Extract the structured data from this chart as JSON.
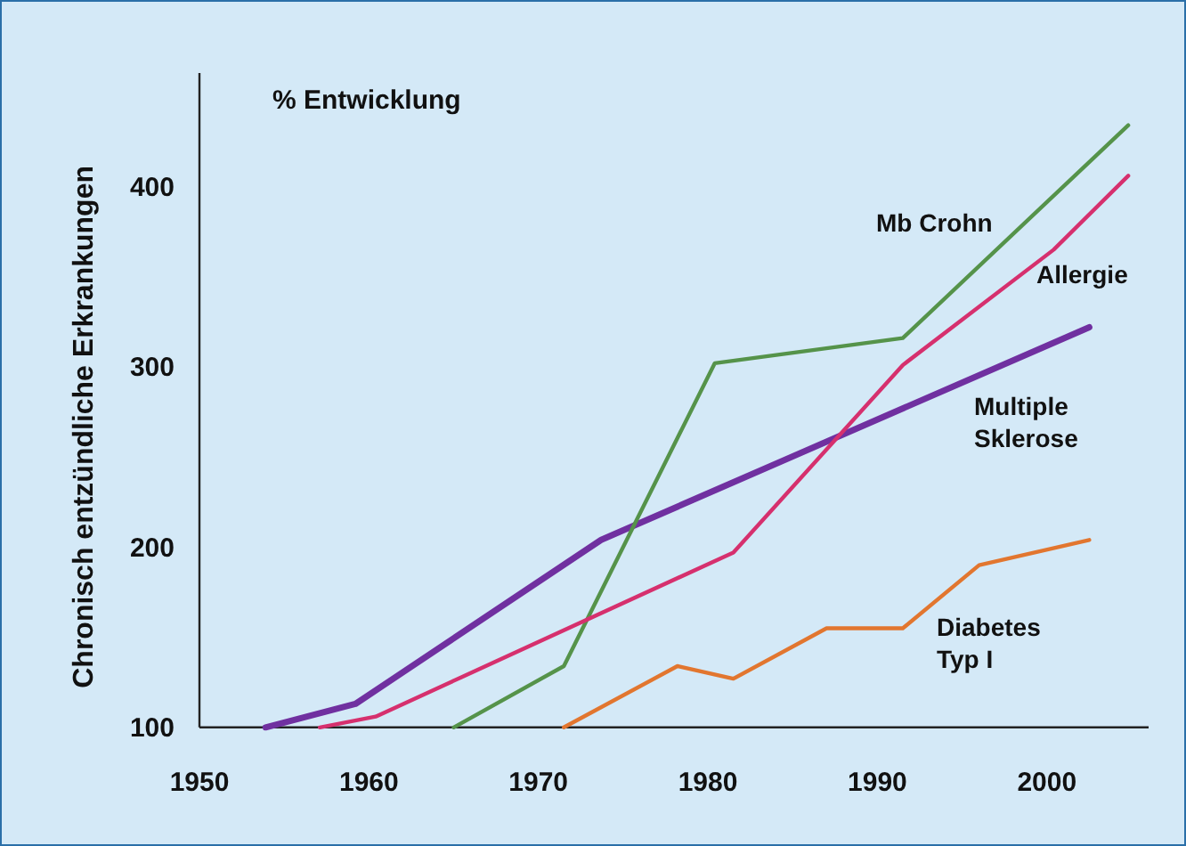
{
  "chart_data": {
    "type": "line",
    "title": "% Entwicklung",
    "ylabel": "Chronisch entzündliche Erkrankungen",
    "xlim": [
      1950,
      2006
    ],
    "xticks": [
      1950,
      1960,
      1970,
      1980,
      1990,
      2000
    ],
    "ylim": [
      100,
      463
    ],
    "yticks": [
      100,
      200,
      300,
      400
    ],
    "grid": false,
    "legend": false,
    "marker": "none",
    "line_style": "solid",
    "series": [
      {
        "name": "Multiple Sklerose",
        "color": "#7030a0",
        "x": [
          1953.9,
          1959.2,
          1973.7,
          2002.5
        ],
        "values": [
          100,
          113,
          204,
          322
        ]
      },
      {
        "name": "Mb Crohn",
        "color": "#55934a",
        "x": [
          1965,
          1971.5,
          1980.4,
          1991.5,
          2004.8
        ],
        "values": [
          100,
          134,
          302,
          316,
          434
        ]
      },
      {
        "name": "Allergie",
        "color": "#d6306e",
        "x": [
          1957.1,
          1960.4,
          1981.5,
          1991.5,
          2000.4,
          2004.8
        ],
        "values": [
          100,
          106,
          197,
          301,
          365,
          406
        ]
      },
      {
        "name": "Diabetes Typ I",
        "color": "#e2762f",
        "x": [
          1971.5,
          1978.2,
          1981.5,
          1987,
          1991.5,
          1996,
          2002.5
        ],
        "values": [
          100,
          134,
          127,
          155,
          155,
          190,
          204
        ]
      }
    ]
  }
}
